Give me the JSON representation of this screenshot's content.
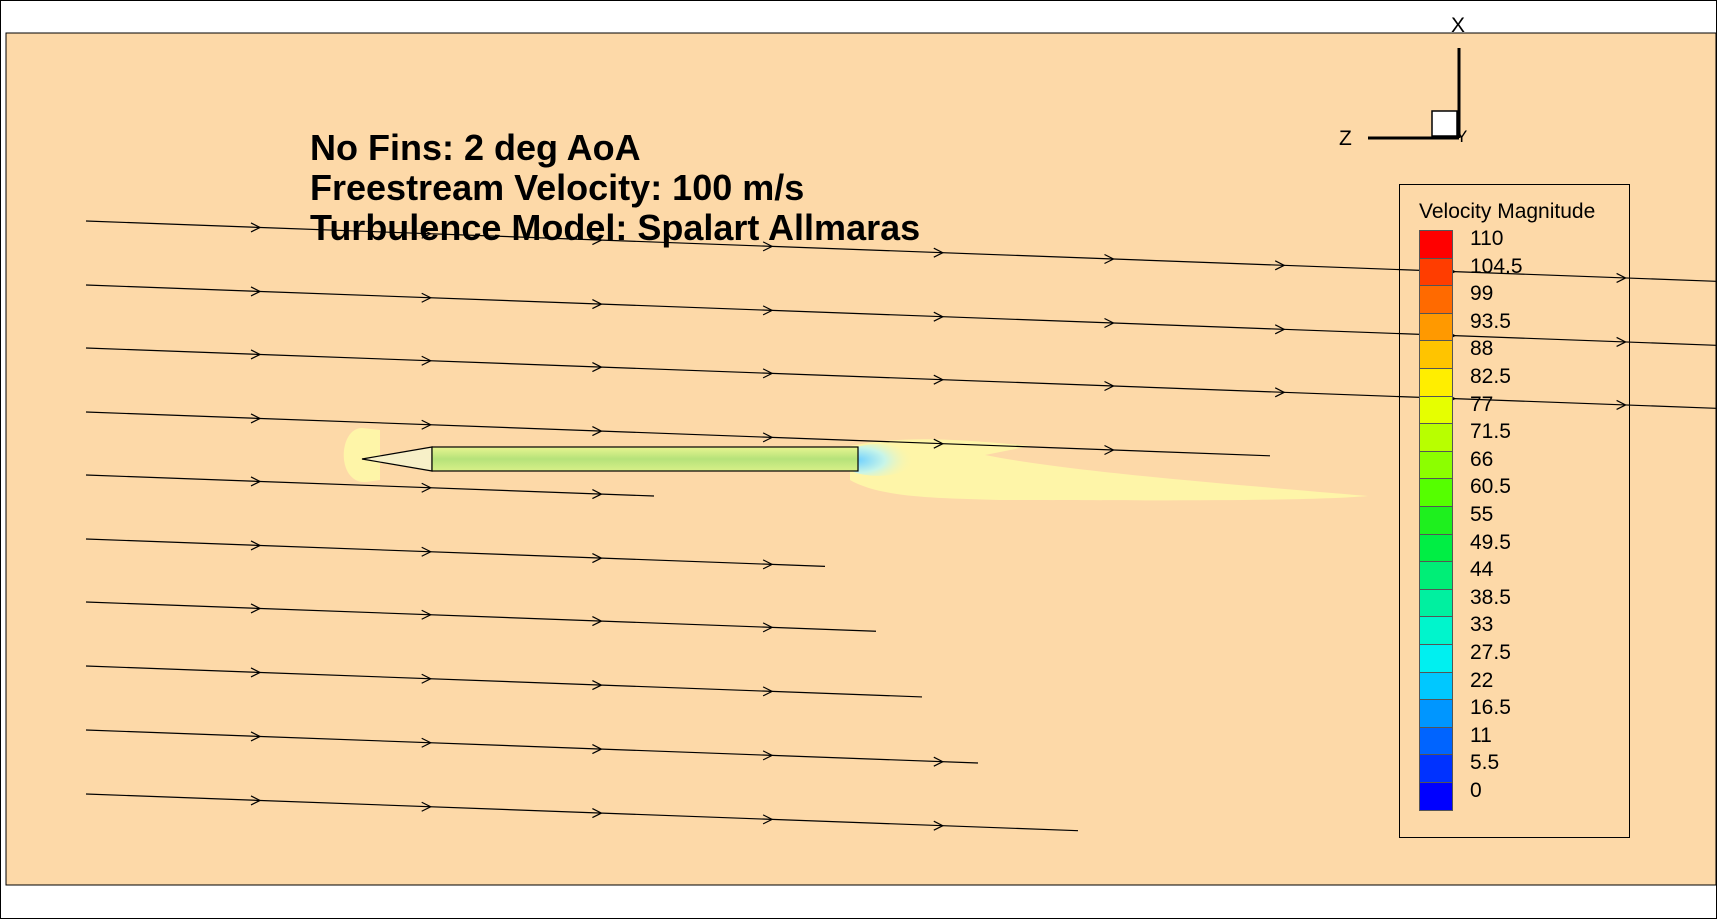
{
  "title_lines": [
    "No Fins: 2 deg AoA",
    "Freestream Velocity: 100 m/s",
    "Turbulence Model: Spalart Allmaras"
  ],
  "legend": {
    "title": "Velocity Magnitude",
    "levels": [
      "110",
      "104.5",
      "99",
      "93.5",
      "88",
      "82.5",
      "77",
      "71.5",
      "66",
      "60.5",
      "55",
      "49.5",
      "44",
      "38.5",
      "33",
      "27.5",
      "22",
      "16.5",
      "11",
      "5.5",
      "0"
    ],
    "colors": [
      "#ff0000",
      "#ff3d00",
      "#ff6a00",
      "#ff9900",
      "#ffc400",
      "#ffee00",
      "#e6ff00",
      "#b8ff00",
      "#8cff00",
      "#55ff00",
      "#1ef01e",
      "#00ee44",
      "#00ee77",
      "#00f0a0",
      "#00f5cc",
      "#00f0f0",
      "#00c8ff",
      "#0096ff",
      "#0064ff",
      "#0032ff",
      "#0000ff"
    ]
  },
  "axes_triad": {
    "x_label": "X",
    "y_label": "Y",
    "z_label": "Z"
  },
  "colors": {
    "freestream_background": "#fdd9a8",
    "wake_region": "#fef5a8",
    "rocket_body": "#c8ec88",
    "streamline": "#000000"
  }
}
